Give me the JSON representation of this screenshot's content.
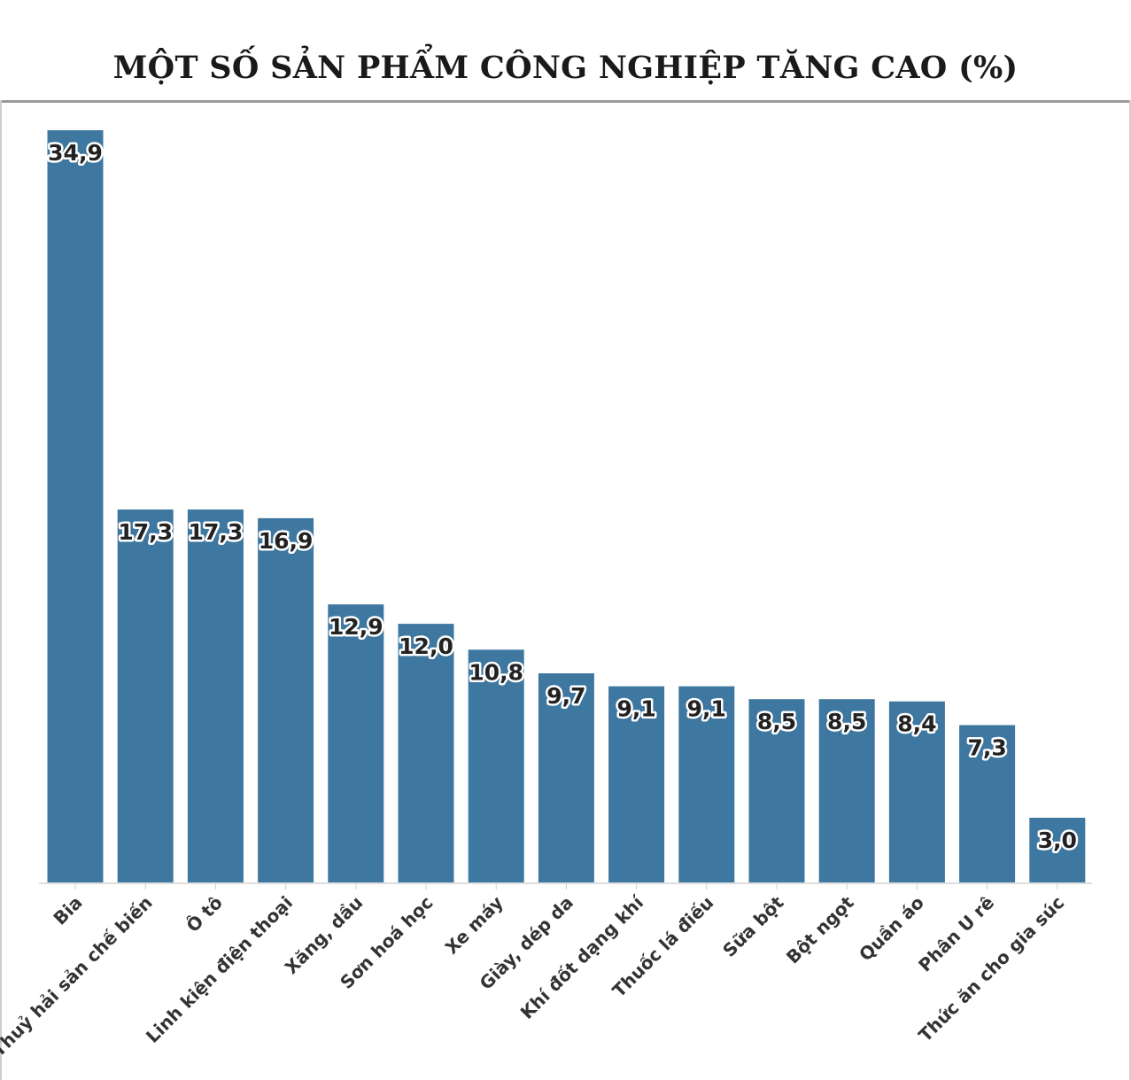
{
  "chart_data": {
    "type": "bar",
    "title": "MỘT SỐ SẢN PHẨM CÔNG NGHIỆP TĂNG CAO (%)",
    "categories": [
      "Bia",
      "Thuỷ hải sản chế biến",
      "Ô tô",
      "Linh kiện điện thoại",
      "Xăng, dầu",
      "Sơn hoá học",
      "Xe máy",
      "Giày, dép da",
      "Khí đốt dạng khí",
      "Thuốc lá điếu",
      "Sữa bột",
      "Bột ngọt",
      "Quần áo",
      "Phân U rê",
      "Thức ăn cho gia súc"
    ],
    "values": [
      34.9,
      17.3,
      17.3,
      16.9,
      12.9,
      12.0,
      10.8,
      9.7,
      9.1,
      9.1,
      8.5,
      8.5,
      8.4,
      7.3,
      3.0
    ],
    "value_labels": [
      "34,9",
      "17,3",
      "17,3",
      "16,9",
      "12,9",
      "12,0",
      "10,8",
      "9,7",
      "9,1",
      "9,1",
      "8,5",
      "8,5",
      "8,4",
      "7,3",
      "3,0"
    ],
    "xlabel": "",
    "ylabel": "",
    "ylim": [
      0,
      34.9
    ],
    "grid": false,
    "bar_color": "#3e77a0"
  }
}
